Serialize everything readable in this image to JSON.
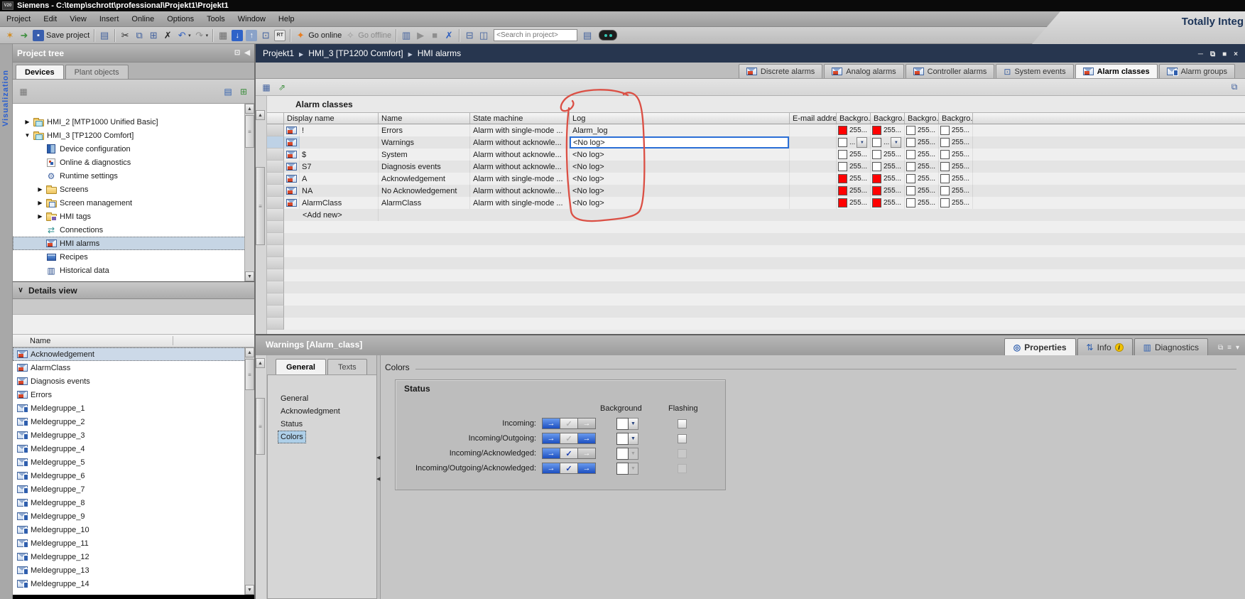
{
  "window": {
    "title": "Siemens - C:\\temp\\schrott\\professional\\Projekt1\\Projekt1",
    "logo_text": "V20",
    "branding": "Totally Integ"
  },
  "menu": {
    "items": [
      "Project",
      "Edit",
      "View",
      "Insert",
      "Online",
      "Options",
      "Tools",
      "Window",
      "Help"
    ]
  },
  "toolbar": {
    "items": [
      {
        "name": "new-project-icon",
        "glyph": "✶",
        "color": "#d28a1e"
      },
      {
        "name": "open-project-icon",
        "glyph": "➜",
        "color": "#3f8f3f"
      },
      {
        "name": "save-project-button",
        "glyph": "▪",
        "color": "#ffffff",
        "bg": "#3a5fae",
        "label": "Save project"
      },
      {
        "type": "sep"
      },
      {
        "name": "print-icon",
        "glyph": "▤",
        "color": "#41619e"
      },
      {
        "type": "sep"
      },
      {
        "name": "cut-icon",
        "glyph": "✂",
        "color": "#2a2a2a"
      },
      {
        "name": "copy-icon",
        "glyph": "⧉",
        "color": "#41619e"
      },
      {
        "name": "paste-icon",
        "glyph": "⊞",
        "color": "#41619e"
      },
      {
        "name": "delete-icon",
        "glyph": "✗",
        "color": "#2a2a2a"
      },
      {
        "name": "undo-button",
        "glyph": "↶",
        "color": "#2f5fbf",
        "dropdown": true
      },
      {
        "name": "redo-button",
        "glyph": "↷",
        "color": "#8f8f8f",
        "dropdown": true
      },
      {
        "type": "sep"
      },
      {
        "name": "compile-icon",
        "glyph": "▦",
        "color": "#6f6f6f"
      },
      {
        "name": "download-to-device-icon",
        "glyph": "↓",
        "color": "#ffffff",
        "bg": "#2f63c8"
      },
      {
        "name": "upload-from-device-icon",
        "glyph": "↑",
        "color": "#ffffff",
        "bg": "#8aa2c8"
      },
      {
        "name": "start-simulation-icon",
        "glyph": "⊡",
        "color": "#41619e"
      },
      {
        "name": "runtime-icon",
        "glyph": "RT",
        "color": "#444444",
        "rt": true
      },
      {
        "type": "sep"
      },
      {
        "name": "go-online-button",
        "glyph": "✦",
        "color": "#e87c1e",
        "label": "Go online"
      },
      {
        "name": "go-offline-button",
        "glyph": "✧",
        "color": "#9a9a9a",
        "label": "Go offline",
        "muted": true
      },
      {
        "type": "sep"
      },
      {
        "name": "accessible-devices-icon",
        "glyph": "▥",
        "color": "#41619e"
      },
      {
        "name": "start-cpu-icon",
        "glyph": "▶",
        "color": "#8f8f8f"
      },
      {
        "name": "stop-cpu-icon",
        "glyph": "■",
        "color": "#8f8f8f"
      },
      {
        "name": "cross-references-icon",
        "glyph": "✗",
        "color": "#2f5fbf"
      },
      {
        "type": "sep"
      },
      {
        "name": "split-editor-horizontal-icon",
        "glyph": "⊟",
        "color": "#41619e"
      },
      {
        "name": "split-editor-vertical-icon",
        "glyph": "◫",
        "color": "#41619e"
      },
      {
        "type": "input",
        "name": "search-input",
        "placeholder": "<Search in project>"
      },
      {
        "name": "user-administration-icon",
        "glyph": "▤",
        "color": "#41619e"
      },
      {
        "type": "copilot",
        "name": "copilot-icon"
      }
    ]
  },
  "editor": {
    "breadcrumb": [
      "Projekt1",
      "HMI_3 [TP1200 Comfort]",
      "HMI alarms"
    ],
    "window_controls": [
      {
        "name": "minimize-icon",
        "glyph": "─"
      },
      {
        "name": "restore-icon",
        "glyph": "⧉"
      },
      {
        "name": "maximize-icon",
        "glyph": "■"
      },
      {
        "name": "close-icon",
        "glyph": "×"
      }
    ],
    "tabs": [
      {
        "label": "Discrete alarms",
        "icon": "alarm-class"
      },
      {
        "label": "Analog alarms",
        "icon": "alarm-class"
      },
      {
        "label": "Controller alarms",
        "icon": "alarm-class"
      },
      {
        "label": "System events",
        "icon": "system"
      },
      {
        "label": "Alarm classes",
        "icon": "alarm-class",
        "active": true
      },
      {
        "label": "Alarm groups",
        "icon": "alarm-group"
      }
    ],
    "toolbar_icons": [
      {
        "name": "table-view-icon",
        "glyph": "▦",
        "color": "#41619e"
      },
      {
        "name": "export-table-icon",
        "glyph": "⇗",
        "color": "#3f8f3f"
      }
    ],
    "detach_icon": {
      "name": "detach-editor-icon",
      "glyph": "⧉",
      "color": "#41619e"
    }
  },
  "project_tree": {
    "title": "Project tree",
    "header_icons": [
      {
        "name": "pin-panel-icon",
        "glyph": "⊡"
      },
      {
        "name": "collapse-panel-icon",
        "glyph": "◀"
      }
    ],
    "tabs": [
      {
        "label": "Devices",
        "active": true
      },
      {
        "label": "Plant objects"
      }
    ],
    "toolbar_icons_left": [
      {
        "name": "tree-options-icon",
        "glyph": "▦",
        "color": "#777777"
      }
    ],
    "toolbar_icons_right": [
      {
        "name": "list-view-icon",
        "glyph": "▤",
        "color": "#2f5fae"
      },
      {
        "name": "sort-table-icon",
        "glyph": "⊞",
        "color": "#3f8f3f"
      }
    ],
    "side_label": "Visualization",
    "items": [
      {
        "label": "HMI_2 [MTP1000 Unified Basic]",
        "indent": 1,
        "expander": "collapsed",
        "icon": "device-folder",
        "bold": true
      },
      {
        "label": "HMI_3 [TP1200 Comfort]",
        "indent": 1,
        "expander": "expanded",
        "icon": "device-folder",
        "bold": true
      },
      {
        "label": "Device configuration",
        "indent": 2,
        "expander": "none",
        "icon": "device-config"
      },
      {
        "label": "Online & diagnostics",
        "indent": 2,
        "expander": "none",
        "icon": "online-diagnostics"
      },
      {
        "label": "Runtime settings",
        "indent": 2,
        "expander": "none",
        "icon": "runtime-settings"
      },
      {
        "label": "Screens",
        "indent": 2,
        "expander": "collapsed",
        "icon": "folder"
      },
      {
        "label": "Screen management",
        "indent": 2,
        "expander": "collapsed",
        "icon": "screen-management"
      },
      {
        "label": "HMI tags",
        "indent": 2,
        "expander": "collapsed",
        "icon": "tags-folder"
      },
      {
        "label": "Connections",
        "indent": 2,
        "expander": "none",
        "icon": "connections"
      },
      {
        "label": "HMI alarms",
        "indent": 2,
        "expander": "none",
        "icon": "hmi-alarms",
        "selected": true
      },
      {
        "label": "Recipes",
        "indent": 2,
        "expander": "none",
        "icon": "recipes"
      },
      {
        "label": "Historical data",
        "indent": 2,
        "expander": "none",
        "icon": "historical-data"
      }
    ]
  },
  "details_view": {
    "title": "Details view",
    "column_header": "Name",
    "items": [
      {
        "label": "Acknowledgement",
        "icon": "alarm-class",
        "selected": true
      },
      {
        "label": "AlarmClass",
        "icon": "alarm-class"
      },
      {
        "label": "Diagnosis events",
        "icon": "alarm-class"
      },
      {
        "label": "Errors",
        "icon": "alarm-class"
      },
      {
        "label": "Meldegruppe_1",
        "icon": "alarm-group"
      },
      {
        "label": "Meldegruppe_2",
        "icon": "alarm-group"
      },
      {
        "label": "Meldegruppe_3",
        "icon": "alarm-group"
      },
      {
        "label": "Meldegruppe_4",
        "icon": "alarm-group"
      },
      {
        "label": "Meldegruppe_5",
        "icon": "alarm-group"
      },
      {
        "label": "Meldegruppe_6",
        "icon": "alarm-group"
      },
      {
        "label": "Meldegruppe_7",
        "icon": "alarm-group"
      },
      {
        "label": "Meldegruppe_8",
        "icon": "alarm-group"
      },
      {
        "label": "Meldegruppe_9",
        "icon": "alarm-group"
      },
      {
        "label": "Meldegruppe_10",
        "icon": "alarm-group"
      },
      {
        "label": "Meldegruppe_11",
        "icon": "alarm-group"
      },
      {
        "label": "Meldegruppe_12",
        "icon": "alarm-group"
      },
      {
        "label": "Meldegruppe_13",
        "icon": "alarm-group"
      },
      {
        "label": "Meldegruppe_14",
        "icon": "alarm-group"
      }
    ]
  },
  "alarm_table": {
    "title": "Alarm classes",
    "columns": [
      "Display name",
      "Name",
      "State machine",
      "Log",
      "E-mail address",
      "Backgro...",
      "Backgro...",
      "Backgro...",
      "Backgro..."
    ],
    "add_row_label": "<Add new>",
    "rows": [
      {
        "display_name": "!",
        "name": "Errors",
        "state_machine": "Alarm with single-mode ...",
        "log": "Alarm_log",
        "email": "",
        "bg": [
          {
            "color": "#ff0000",
            "text": "255..."
          },
          {
            "color": "#ff0000",
            "text": "255..."
          },
          {
            "color": "#ffffff",
            "text": "255..."
          },
          {
            "color": "#ffffff",
            "text": "255..."
          }
        ]
      },
      {
        "display_name": "",
        "name": "Warnings",
        "state_machine": "Alarm without acknowle...",
        "log": "<No log>",
        "email": "",
        "selected": true,
        "log_editing": true,
        "bg": [
          {
            "color": "#ffffff",
            "text": "...",
            "dropdown": true
          },
          {
            "color": "#ffffff",
            "text": "...",
            "dropdown": true
          },
          {
            "color": "#ffffff",
            "text": "255..."
          },
          {
            "color": "#ffffff",
            "text": "255..."
          }
        ]
      },
      {
        "display_name": "$",
        "name": "System",
        "state_machine": "Alarm without acknowle...",
        "log": "<No log>",
        "email": "",
        "bg": [
          {
            "color": "#ffffff",
            "text": "255..."
          },
          {
            "color": "#ffffff",
            "text": "255..."
          },
          {
            "color": "#ffffff",
            "text": "255..."
          },
          {
            "color": "#ffffff",
            "text": "255..."
          }
        ]
      },
      {
        "display_name": "S7",
        "name": "Diagnosis events",
        "state_machine": "Alarm without acknowle...",
        "log": "<No log>",
        "email": "",
        "bg": [
          {
            "color": "#ffffff",
            "text": "255..."
          },
          {
            "color": "#ffffff",
            "text": "255..."
          },
          {
            "color": "#ffffff",
            "text": "255..."
          },
          {
            "color": "#ffffff",
            "text": "255..."
          }
        ]
      },
      {
        "display_name": "A",
        "name": "Acknowledgement",
        "state_machine": "Alarm with single-mode ...",
        "log": "<No log>",
        "email": "",
        "bg": [
          {
            "color": "#ff0000",
            "text": "255..."
          },
          {
            "color": "#ff0000",
            "text": "255..."
          },
          {
            "color": "#ffffff",
            "text": "255..."
          },
          {
            "color": "#ffffff",
            "text": "255..."
          }
        ]
      },
      {
        "display_name": "NA",
        "name": "No Acknowledgement",
        "state_machine": "Alarm without acknowle...",
        "log": "<No log>",
        "email": "",
        "bg": [
          {
            "color": "#ff0000",
            "text": "255..."
          },
          {
            "color": "#ff0000",
            "text": "255..."
          },
          {
            "color": "#ffffff",
            "text": "255..."
          },
          {
            "color": "#ffffff",
            "text": "255..."
          }
        ]
      },
      {
        "display_name": "AlarmClass",
        "name": "AlarmClass",
        "state_machine": "Alarm with single-mode ...",
        "log": "<No log>",
        "email": "",
        "bg": [
          {
            "color": "#ff0000",
            "text": "255..."
          },
          {
            "color": "#ff0000",
            "text": "255..."
          },
          {
            "color": "#ffffff",
            "text": "255..."
          },
          {
            "color": "#ffffff",
            "text": "255..."
          }
        ]
      }
    ]
  },
  "properties": {
    "title": "Warnings [Alarm_class]",
    "tabs": [
      {
        "label": "Properties",
        "icon": "properties",
        "active": true
      },
      {
        "label": "Info",
        "icon": "info",
        "badge": "i"
      },
      {
        "label": "Diagnostics",
        "icon": "diagnostics"
      }
    ],
    "window_icons": [
      {
        "name": "float-panel-icon",
        "glyph": "⧉"
      },
      {
        "name": "panel-menu-icon",
        "glyph": "≡"
      },
      {
        "name": "collapse-panel-icon",
        "glyph": "▾"
      }
    ],
    "subtabs": [
      {
        "label": "General",
        "active": true
      },
      {
        "label": "Texts"
      }
    ],
    "nav": [
      {
        "label": "General"
      },
      {
        "label": "Acknowledgment"
      },
      {
        "label": "Status"
      },
      {
        "label": "Colors",
        "selected": true
      }
    ],
    "section_title": "Colors",
    "group_title": "Status",
    "column_headers": {
      "background": "Background",
      "flashing": "Flashing"
    },
    "status_rows": [
      {
        "label": "Incoming:",
        "buttons": [
          "blue-arrow",
          "gray-check",
          "gray-arrow"
        ],
        "background_enabled": true,
        "flashing_enabled": true
      },
      {
        "label": "Incoming/Outgoing:",
        "buttons": [
          "blue-arrow",
          "gray-check",
          "blue-arrow"
        ],
        "background_enabled": true,
        "flashing_enabled": true
      },
      {
        "label": "Incoming/Acknowledged:",
        "buttons": [
          "blue-arrow",
          "blue-check",
          "gray-arrow"
        ],
        "background_enabled": false,
        "flashing_enabled": false
      },
      {
        "label": "Incoming/Outgoing/Acknowledged:",
        "buttons": [
          "blue-arrow",
          "blue-check",
          "blue-arrow"
        ],
        "background_enabled": false,
        "flashing_enabled": false
      }
    ]
  },
  "colors": {
    "alarm_red": "#ff0000",
    "annotation_red": "#db4f44",
    "selection_blue": "#2a6fd6",
    "brand_navy": "#1b3357"
  }
}
